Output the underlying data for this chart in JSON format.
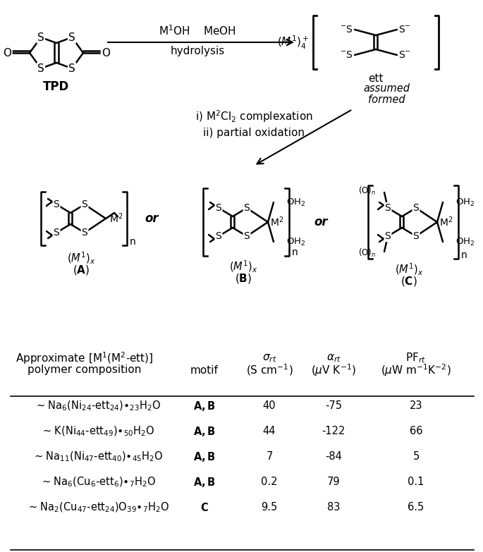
{
  "figure_width": 6.85,
  "figure_height": 7.83,
  "bg_color": "#ffffff",
  "rows": [
    {
      "comp_latex": "~ Na$_6$(Ni$_{24}$-ett$_{24}$)$\\bullet_{23}$H$_2$O",
      "motif": "A,B",
      "sigma": "40",
      "alpha": "-75",
      "pf": "23"
    },
    {
      "comp_latex": "~ K(Ni$_{44}$-ett$_{49}$)$\\bullet_{50}$H$_2$O",
      "motif": "A,B",
      "sigma": "44",
      "alpha": "-122",
      "pf": "66"
    },
    {
      "comp_latex": "~ Na$_{11}$(Ni$_{47}$-ett$_{40}$)$\\bullet_{45}$H$_2$O",
      "motif": "A,B",
      "sigma": "7",
      "alpha": "-84",
      "pf": "5"
    },
    {
      "comp_latex": "~ Na$_6$(Cu$_6$-ett$_6$)$\\bullet_7$H$_2$O",
      "motif": "A,B",
      "sigma": "0.2",
      "alpha": "79",
      "pf": "0.1"
    },
    {
      "comp_latex": "~ Na$_2$(Cu$_{47}$-ett$_{24}$)O$_{39}$$\\bullet_7$H$_2$O",
      "motif": "C",
      "sigma": "9.5",
      "alpha": "83",
      "pf": "6.5"
    }
  ]
}
